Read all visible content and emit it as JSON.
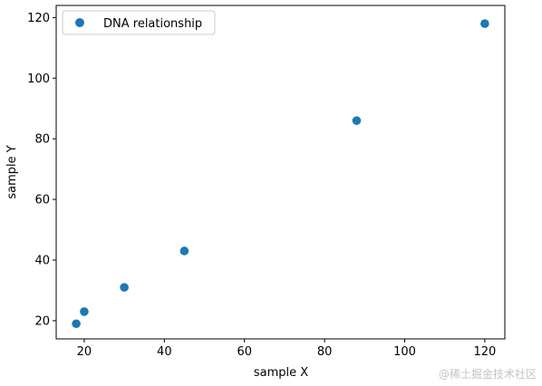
{
  "chart_data": {
    "type": "scatter",
    "title": "",
    "xlabel": "sample X",
    "ylabel": "sample Y",
    "xlim": [
      13,
      125
    ],
    "ylim": [
      14,
      124
    ],
    "xticks": [
      20,
      40,
      60,
      80,
      100,
      120
    ],
    "yticks": [
      20,
      40,
      60,
      80,
      100,
      120
    ],
    "grid": false,
    "legend_position": "top-left",
    "series": [
      {
        "name": "DNA relationship",
        "color": "#1f77b4",
        "x": [
          18,
          20,
          30,
          45,
          88,
          120
        ],
        "y": [
          19,
          23,
          31,
          43,
          86,
          118
        ]
      }
    ]
  },
  "watermark": "@稀土掘金技术社区"
}
